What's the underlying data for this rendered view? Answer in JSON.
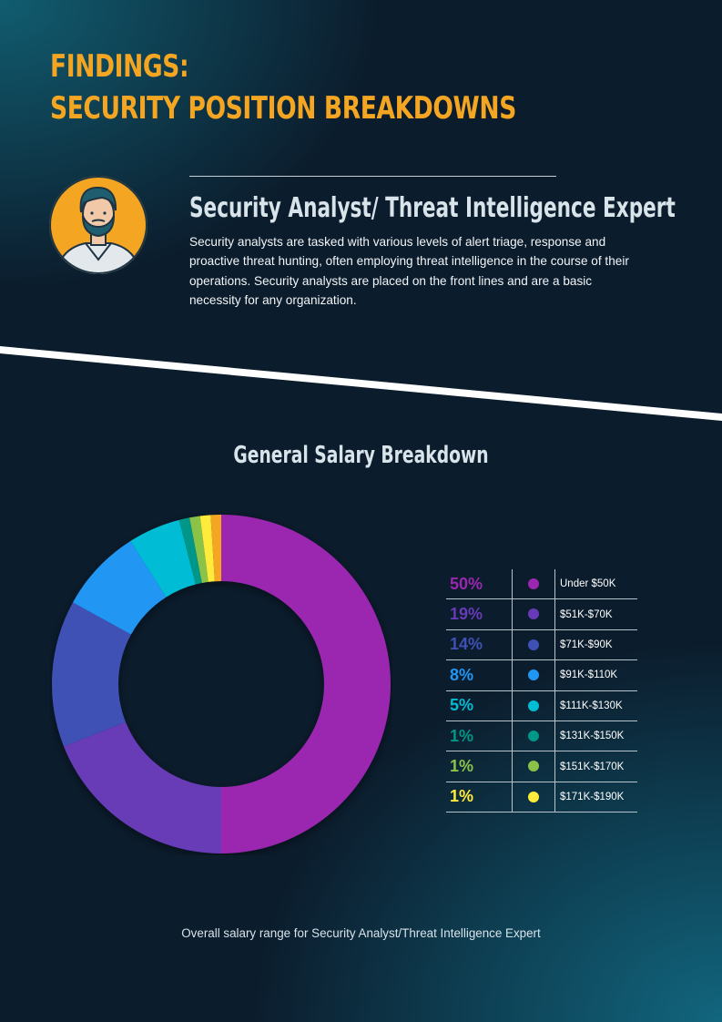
{
  "page": {
    "title_line1": "FINDINGS:",
    "title_line2": "SECURITY POSITION BREAKDOWNS",
    "role_title": "Security Analyst/ Threat Intelligence Expert",
    "role_description": "Security analysts are tasked with various levels of alert triage, response and proactive threat hunting, often employing threat intelligence in the course of their operations. Security analysts are placed on the front lines and are a basic necessity for any organization.",
    "caption": "Overall salary range for Security Analyst/Threat Intelligence Expert"
  },
  "colors": {
    "accent": "#f4a623",
    "background": "#0b1c2c",
    "avatar_bg": "#f4a623"
  },
  "icons": {
    "avatar": "man-with-beard-avatar-icon"
  },
  "chart_data": {
    "type": "pie",
    "title": "General Salary Breakdown",
    "categories": [
      "Under $50K",
      "$51K-$70K",
      "$71K-$90K",
      "$91K-$110K",
      "$111K-$130K",
      "$131K-$150K",
      "$151K-$170K",
      "$171K-$190K"
    ],
    "values": [
      50,
      19,
      14,
      8,
      5,
      1,
      1,
      1
    ],
    "value_labels": [
      "50%",
      "19%",
      "14%",
      "8%",
      "5%",
      "1%",
      "1%",
      "1%"
    ],
    "colors": [
      "#9b27b0",
      "#673ab7",
      "#3f51b5",
      "#2196f3",
      "#00bcd4",
      "#009688",
      "#8bc34a",
      "#ffeb3b"
    ],
    "remainder_color": "#f4a623",
    "legend_position": "right",
    "donut": true
  }
}
